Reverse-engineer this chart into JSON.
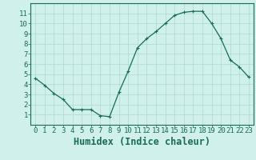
{
  "x": [
    0,
    1,
    2,
    3,
    4,
    5,
    6,
    7,
    8,
    9,
    10,
    11,
    12,
    13,
    14,
    15,
    16,
    17,
    18,
    19,
    20,
    21,
    22,
    23
  ],
  "y": [
    4.6,
    3.9,
    3.1,
    2.5,
    1.5,
    1.5,
    1.5,
    0.9,
    0.8,
    3.2,
    5.3,
    7.6,
    8.5,
    9.2,
    10.0,
    10.8,
    11.1,
    11.2,
    11.2,
    10.0,
    8.5,
    6.4,
    5.7,
    4.7
  ],
  "xlabel": "Humidex (Indice chaleur)",
  "ylim": [
    0,
    12
  ],
  "xlim": [
    -0.5,
    23.5
  ],
  "yticks": [
    1,
    2,
    3,
    4,
    5,
    6,
    7,
    8,
    9,
    10,
    11
  ],
  "xticks": [
    0,
    1,
    2,
    3,
    4,
    5,
    6,
    7,
    8,
    9,
    10,
    11,
    12,
    13,
    14,
    15,
    16,
    17,
    18,
    19,
    20,
    21,
    22,
    23
  ],
  "line_color": "#1a6b5a",
  "marker": "+",
  "bg_color": "#cff0eb",
  "grid_color": "#aad8d0",
  "tick_label_fontsize": 6.5,
  "xlabel_fontsize": 8.5
}
